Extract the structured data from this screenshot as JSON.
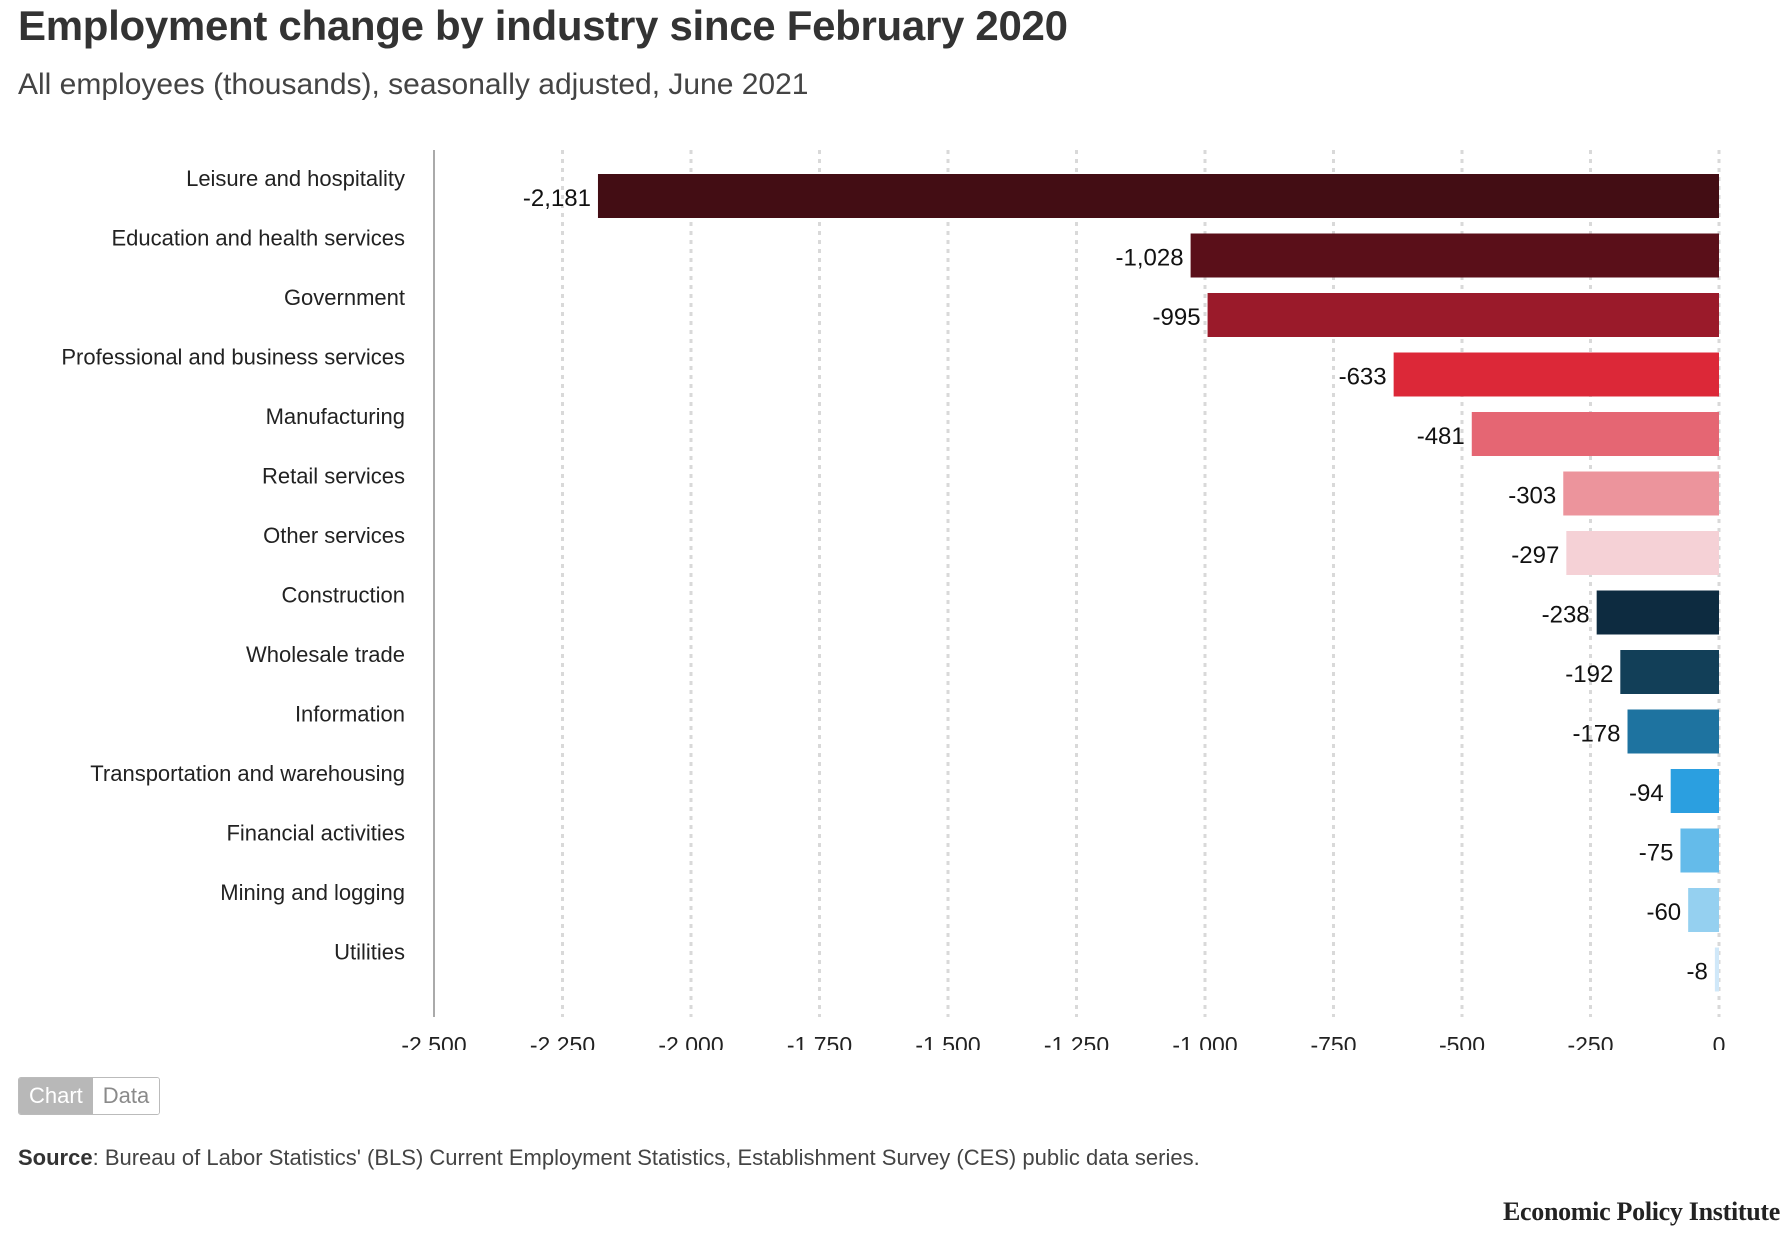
{
  "title": "Employment change by industry since February 2020",
  "subtitle": "All employees (thousands), seasonally adjusted, June 2021",
  "chart_data": {
    "type": "bar",
    "orientation": "horizontal",
    "categories": [
      "Leisure and hospitality",
      "Education and health services",
      "Government",
      "Professional and business services",
      "Manufacturing",
      "Retail services",
      "Other services",
      "Construction",
      "Wholesale trade",
      "Information",
      "Transportation and warehousing",
      "Financial activities",
      "Mining and logging",
      "Utilities"
    ],
    "values": [
      -2181,
      -1028,
      -995,
      -633,
      -481,
      -303,
      -297,
      -238,
      -192,
      -178,
      -94,
      -75,
      -60,
      -8
    ],
    "value_labels": [
      "-2,181",
      "-1,028",
      "-995",
      "-633",
      "-481",
      "-303",
      "-297",
      "-238",
      "-192",
      "-178",
      "-94",
      "-75",
      "-60",
      "-8"
    ],
    "colors": [
      "#430d14",
      "#5a0f19",
      "#9a1a2a",
      "#dc2838",
      "#e56673",
      "#ec949c",
      "#f5d1d6",
      "#0d2b40",
      "#123f58",
      "#1e73a0",
      "#2b9fe0",
      "#64bbea",
      "#95d0f0",
      "#d0e8f9"
    ],
    "xlim": [
      -2500,
      0
    ],
    "xticks": [
      -2500,
      -2250,
      -2000,
      -1750,
      -1500,
      -1250,
      -1000,
      -750,
      -500,
      -250,
      0
    ],
    "xtick_labels": [
      "-2,500",
      "-2,250",
      "-2,000",
      "-1,750",
      "-1,500",
      "-1,250",
      "-1,000",
      "-750",
      "-500",
      "-250",
      "0"
    ],
    "grid": true
  },
  "toggle": {
    "chart_label": "Chart",
    "data_label": "Data"
  },
  "source": {
    "label": "Source",
    "text": ": Bureau of Labor Statistics' (BLS) Current Employment Statistics, Establishment Survey (CES) public data series."
  },
  "brand": "Economic Policy Institute"
}
